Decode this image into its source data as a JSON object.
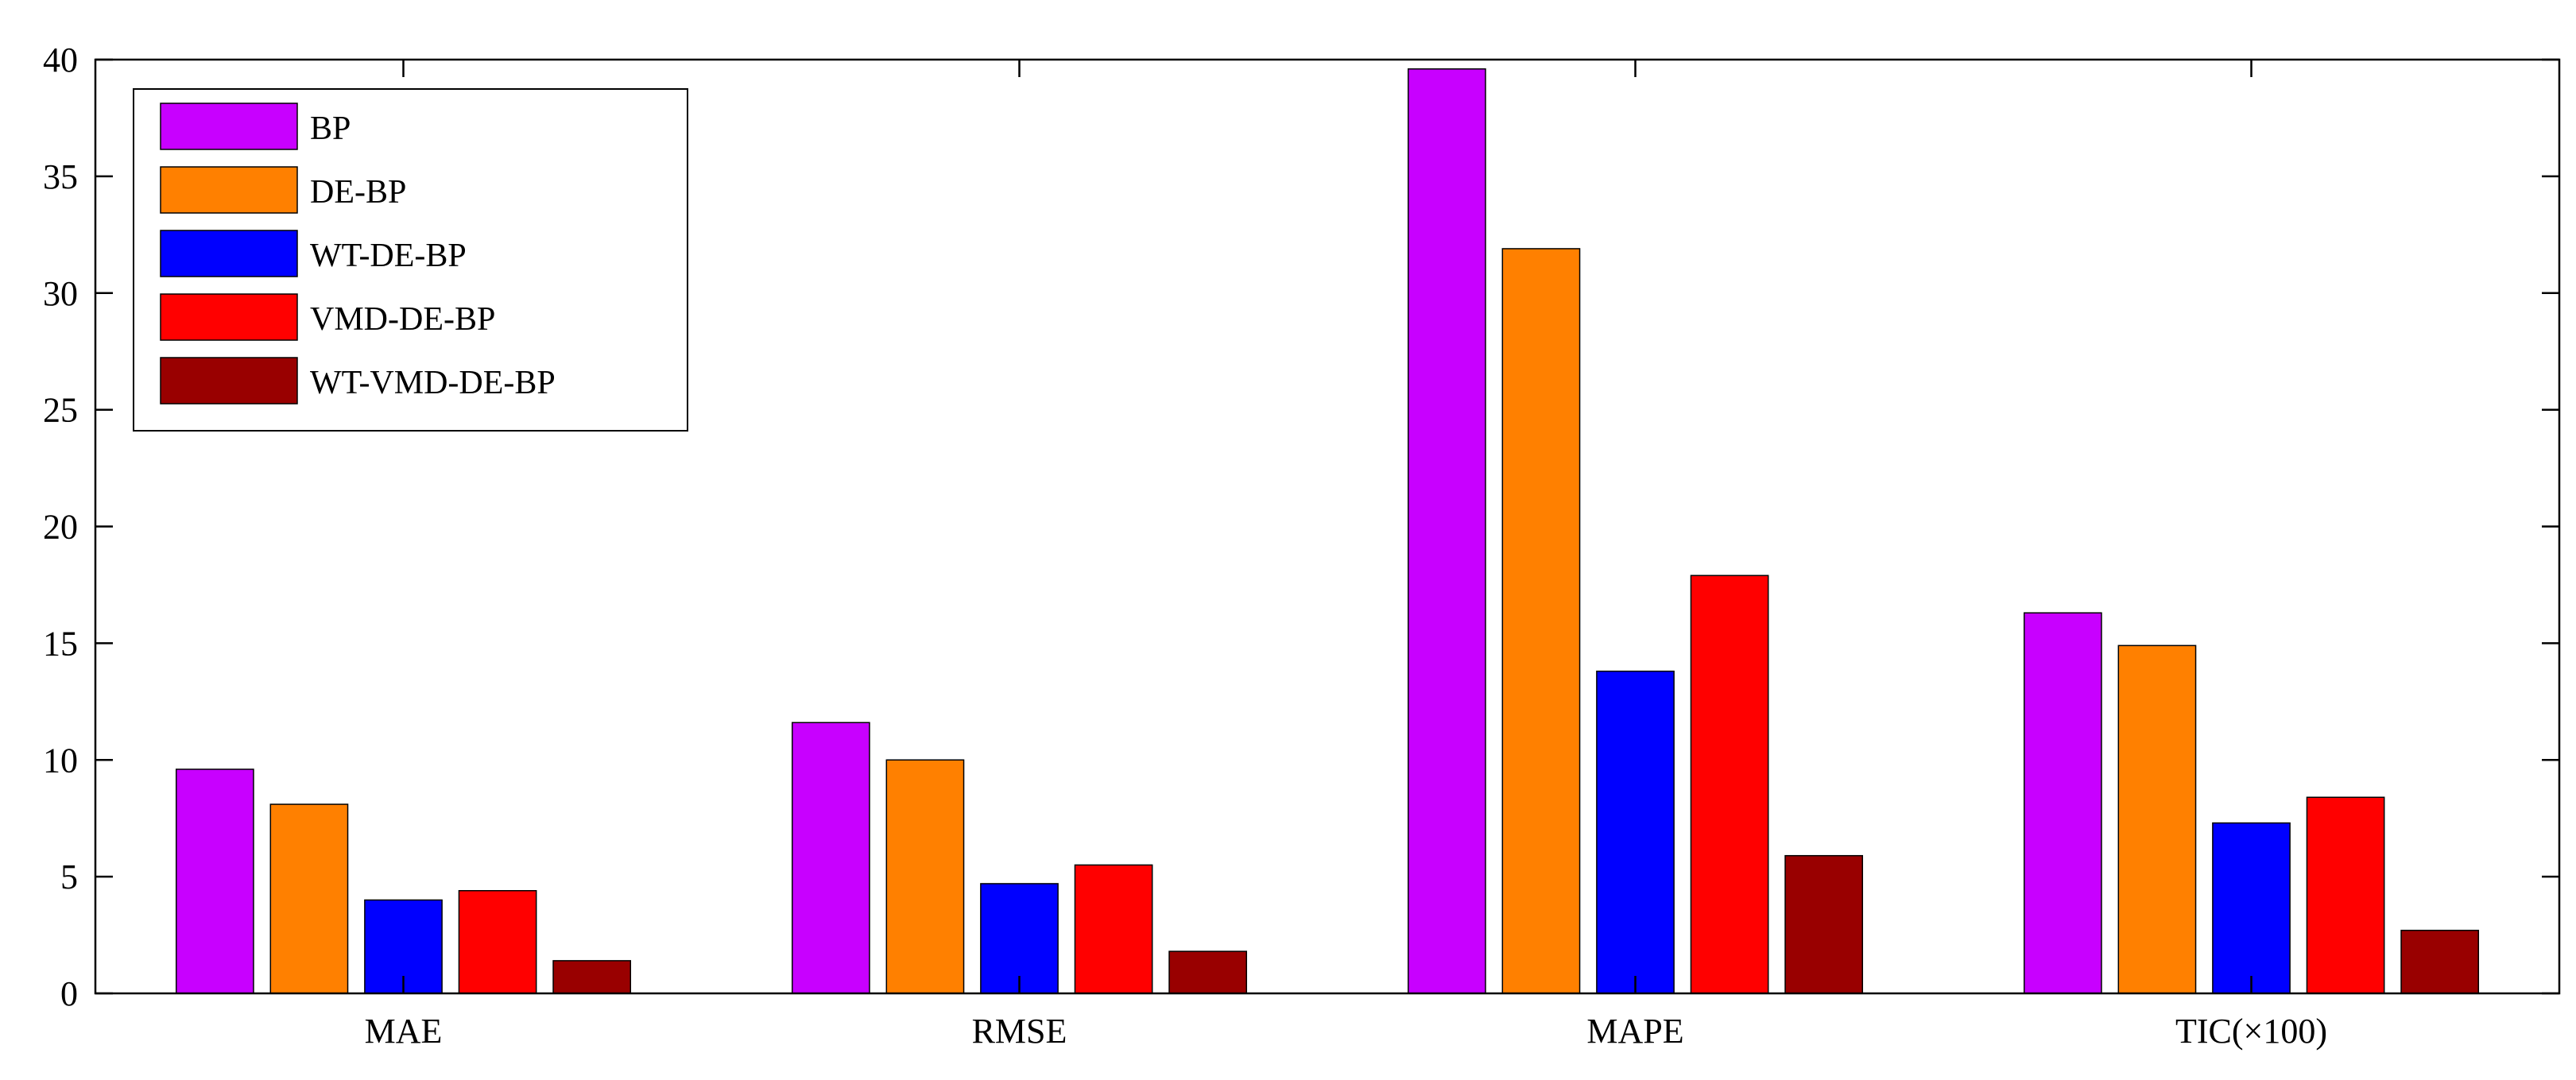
{
  "chart_data": {
    "type": "bar",
    "categories": [
      "MAE",
      "RMSE",
      "MAPE",
      "TIC(×100)"
    ],
    "series": [
      {
        "name": "BP",
        "color": "#C800FF",
        "values": [
          9.6,
          11.6,
          39.6,
          16.3
        ]
      },
      {
        "name": "DE-BP",
        "color": "#FF8000",
        "values": [
          8.1,
          10.0,
          31.9,
          14.9
        ]
      },
      {
        "name": "WT-DE-BP",
        "color": "#0000FF",
        "values": [
          4.0,
          4.7,
          13.8,
          7.3
        ]
      },
      {
        "name": "VMD-DE-BP",
        "color": "#FF0000",
        "values": [
          4.4,
          5.5,
          17.9,
          8.4
        ]
      },
      {
        "name": "WT-VMD-DE-BP",
        "color": "#990000",
        "values": [
          1.4,
          1.8,
          5.9,
          2.7
        ]
      }
    ],
    "ylim": [
      0,
      40
    ],
    "yticks": [
      0,
      5,
      10,
      15,
      20,
      25,
      30,
      35,
      40
    ],
    "legend_position": "top-left",
    "grid": false
  }
}
